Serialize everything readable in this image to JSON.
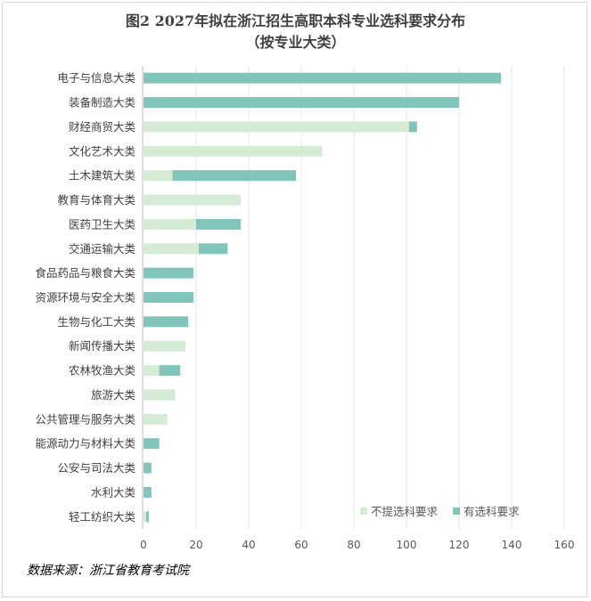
{
  "chart_data": {
    "type": "bar",
    "orientation": "horizontal",
    "stacked": true,
    "title": "图2  2027年拟在浙江招生高职本科专业选科要求分布",
    "subtitle": "（按专业大类）",
    "categories": [
      "电子与信息大类",
      "装备制造大类",
      "财经商贸大类",
      "文化艺术大类",
      "土木建筑大类",
      "教育与体育大类",
      "医药卫生大类",
      "交通运输大类",
      "食品药品与粮食大类",
      "资源环境与安全大类",
      "生物与化工大类",
      "新闻传播大类",
      "农林牧渔大类",
      "旅游大类",
      "公共管理与服务大类",
      "能源动力与材料大类",
      "公安与司法大类",
      "水利大类",
      "轻工纺织大类"
    ],
    "series": [
      {
        "name": "不提选科要求",
        "color": "#d5ecd4",
        "values": [
          0,
          0,
          101,
          68,
          11,
          37,
          20,
          21,
          0,
          0,
          0,
          16,
          6,
          12,
          9,
          0,
          0,
          0,
          1
        ]
      },
      {
        "name": "有选科要求",
        "color": "#7fc5bb",
        "values": [
          136,
          120,
          3,
          0,
          47,
          0,
          17,
          11,
          19,
          19,
          17,
          0,
          8,
          0,
          0,
          6,
          3,
          3,
          1
        ]
      }
    ],
    "xlim": [
      0,
      160
    ],
    "xticks": [
      0,
      20,
      40,
      60,
      80,
      100,
      120,
      140,
      160
    ],
    "legend_position": "bottom-right",
    "grid": "vertical"
  },
  "source": "数据来源：浙江省教育考试院"
}
